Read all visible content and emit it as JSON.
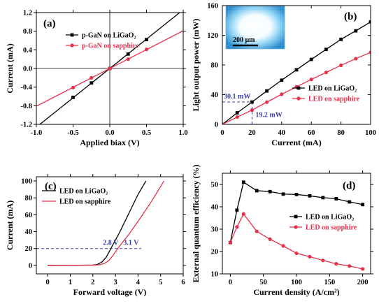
{
  "chart_data": [
    {
      "type": "line",
      "panel_label": "(a)",
      "xlabel": "Applied biax (V)",
      "ylabel": "Current (mA)",
      "xlim": [
        -1.0,
        1.0
      ],
      "ylim": [
        -1.2,
        1.2
      ],
      "xticks": [
        -1.0,
        -0.5,
        0.0,
        0.5,
        1.0
      ],
      "xtick_labels": [
        "-1.0",
        "-0.5",
        "0.0",
        "0.5",
        "1.0"
      ],
      "yticks": [
        -1.2,
        -0.8,
        -0.4,
        0.0,
        0.4,
        0.8,
        1.2
      ],
      "ytick_labels": [
        "-1.2",
        "-0.8",
        "-0.4",
        "0.0",
        "0.4",
        "0.8",
        "1.2"
      ],
      "legend": "top-left",
      "series": [
        {
          "name": "p-GaN on LiGaO₂",
          "color": "#000000",
          "marker": "square",
          "line_x": [
            -1.0,
            1.0
          ],
          "line_y": [
            -1.26,
            1.26
          ],
          "marker_x": [
            -0.5,
            -0.25,
            0.0,
            0.25,
            0.5
          ],
          "marker_y": [
            -0.62,
            -0.31,
            0.0,
            0.31,
            0.62
          ]
        },
        {
          "name": "p-GaN on sapphire",
          "color": "#e8304a",
          "marker": "circle",
          "line_x": [
            -1.0,
            1.0
          ],
          "line_y": [
            -0.81,
            0.81
          ],
          "marker_x": [
            -0.5,
            -0.25,
            0.0,
            0.25,
            0.5
          ],
          "marker_y": [
            -0.41,
            -0.2,
            0.0,
            0.2,
            0.41
          ]
        }
      ]
    },
    {
      "type": "line",
      "panel_label": "(b)",
      "xlabel": "Current (mA)",
      "ylabel": "Light output power (mW)",
      "xlim": [
        0,
        100
      ],
      "ylim": [
        0,
        160
      ],
      "xticks": [
        0,
        20,
        40,
        60,
        80,
        100
      ],
      "xtick_labels": [
        "0",
        "20",
        "40",
        "60",
        "80",
        "100"
      ],
      "yticks": [
        0,
        40,
        80,
        120,
        160
      ],
      "ytick_labels": [
        "0",
        "40",
        "80",
        "120",
        "160"
      ],
      "legend": "right",
      "inset_scale_label": "200 μm",
      "annotations": [
        "30.1 mW",
        "19.2 mW"
      ],
      "series": [
        {
          "name": "LED on LiGaO₂",
          "color": "#000000",
          "marker": "square",
          "x": [
            0,
            10,
            20,
            30,
            40,
            50,
            60,
            70,
            80,
            90,
            100
          ],
          "y": [
            0,
            15.5,
            30.1,
            45,
            59.5,
            73.5,
            87.5,
            101,
            114.5,
            126,
            138
          ]
        },
        {
          "name": "LED on sapphire",
          "color": "#e8304a",
          "marker": "circle",
          "x": [
            0,
            10,
            20,
            30,
            40,
            50,
            60,
            70,
            80,
            90,
            100
          ],
          "y": [
            0,
            9.8,
            19.2,
            30,
            40.5,
            50.5,
            60.5,
            70,
            79.5,
            88.5,
            97
          ]
        }
      ]
    },
    {
      "type": "line",
      "panel_label": "(c)",
      "xlabel": "Forward voltage (V)",
      "ylabel": "Current (mA)",
      "xlim": [
        -0.5,
        6
      ],
      "ylim": [
        -10,
        105
      ],
      "xticks": [
        0,
        1,
        2,
        3,
        4,
        5,
        6
      ],
      "xtick_labels": [
        "0",
        "1",
        "2",
        "3",
        "4",
        "5",
        "6"
      ],
      "yticks": [
        0,
        20,
        40,
        60,
        80,
        100
      ],
      "ytick_labels": [
        "0",
        "20",
        "40",
        "60",
        "80",
        "100"
      ],
      "legend": "top-left",
      "annotations": [
        "2.8 V",
        "3.1 V"
      ],
      "series": [
        {
          "name": "LED on LiGaO₂",
          "color": "#000000",
          "x": [
            0,
            1,
            2,
            2.2,
            2.4,
            2.6,
            2.8,
            3.2,
            3.6,
            4.0,
            4.35
          ],
          "y": [
            0,
            0.1,
            0.4,
            1.2,
            4,
            10,
            20,
            40,
            62,
            84,
            100
          ]
        },
        {
          "name": "LED on sapphire",
          "color": "#e8304a",
          "x": [
            0,
            1,
            2,
            2.3,
            2.5,
            2.7,
            2.9,
            3.1,
            3.6,
            4.1,
            4.6,
            5.15
          ],
          "y": [
            0,
            0.1,
            0.3,
            0.8,
            2.2,
            5.5,
            12,
            20,
            37,
            56,
            76,
            100
          ]
        }
      ]
    },
    {
      "type": "line",
      "panel_label": "(d)",
      "xlabel": "Current density (A/cm²)",
      "ylabel": "External quantum efficiency (%)",
      "xlim": [
        -12,
        212
      ],
      "ylim": [
        10,
        55
      ],
      "xticks": [
        0,
        50,
        100,
        150,
        200
      ],
      "xtick_labels": [
        "0",
        "50",
        "100",
        "150",
        "200"
      ],
      "yticks": [
        10,
        20,
        30,
        40,
        50
      ],
      "ytick_labels": [
        "10",
        "20",
        "30",
        "40",
        "50"
      ],
      "legend": "right",
      "series": [
        {
          "name": "LED on LiGaO₂",
          "color": "#000000",
          "marker": "square",
          "x": [
            0,
            10,
            20,
            40,
            60,
            80,
            100,
            120,
            140,
            160,
            180,
            200
          ],
          "y": [
            24,
            38.5,
            51,
            47.2,
            46.8,
            45.7,
            45.5,
            44.9,
            44.1,
            43.6,
            42.2,
            41
          ]
        },
        {
          "name": "LED on sapphire",
          "color": "#e8304a",
          "marker": "circle",
          "x": [
            0,
            10,
            20,
            40,
            60,
            80,
            100,
            120,
            140,
            160,
            180,
            200
          ],
          "y": [
            24,
            31,
            36.8,
            29,
            25.5,
            22.5,
            19.2,
            17.7,
            16,
            14.5,
            13.5,
            12.2
          ]
        }
      ]
    }
  ]
}
